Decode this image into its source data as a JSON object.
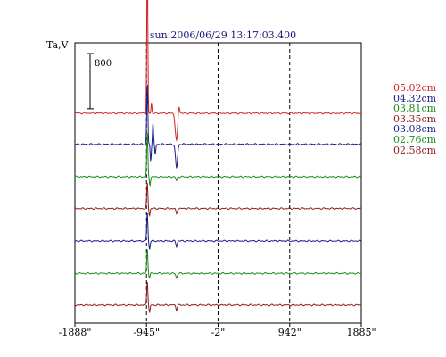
{
  "chart_data": {
    "type": "line",
    "title": "sun:2006/06/29 13:17:03.400",
    "ylabel": "Ta,V",
    "scale_bar_label": "800",
    "xlim": [
      -1888,
      1885
    ],
    "x_ticks": [
      {
        "value": -1888,
        "label": "-1888\""
      },
      {
        "value": -945,
        "label": "-945\""
      },
      {
        "value": -2,
        "label": "-2\""
      },
      {
        "value": 942,
        "label": "942\""
      },
      {
        "value": 1885,
        "label": "1885\""
      }
    ],
    "vertical_gridlines_at": [
      -945,
      -2,
      942
    ],
    "series": [
      {
        "name": "05.02cm",
        "color": "#cc2222",
        "baseline": 2880,
        "peaks": [
          {
            "x": -935,
            "amp": 2500,
            "width": 9
          },
          {
            "x": -880,
            "amp": 150,
            "width": 8
          },
          {
            "x": -550,
            "amp": -400,
            "width": 22
          },
          {
            "x": -520,
            "amp": 140,
            "width": 14
          }
        ]
      },
      {
        "name": "04.32cm",
        "color": "#1a1a8c",
        "baseline": 2430,
        "peaks": [
          {
            "x": -935,
            "amp": 900,
            "width": 10
          },
          {
            "x": -890,
            "amp": -250,
            "width": 9
          },
          {
            "x": -860,
            "amp": 320,
            "width": 9
          },
          {
            "x": -830,
            "amp": -150,
            "width": 9
          },
          {
            "x": -550,
            "amp": -350,
            "width": 18
          }
        ]
      },
      {
        "name": "03.81cm",
        "color": "#1a8a1a",
        "baseline": 1960,
        "peaks": [
          {
            "x": -935,
            "amp": 650,
            "width": 10
          },
          {
            "x": -900,
            "amp": -120,
            "width": 10
          },
          {
            "x": -550,
            "amp": -60,
            "width": 12
          }
        ]
      },
      {
        "name": "03.35cm",
        "color": "#8c1a1a",
        "baseline": 1500,
        "peaks": [
          {
            "x": -935,
            "amp": 380,
            "width": 10
          },
          {
            "x": -905,
            "amp": -100,
            "width": 10
          },
          {
            "x": -550,
            "amp": -80,
            "width": 12
          }
        ]
      },
      {
        "name": "03.08cm",
        "color": "#1a1a8c",
        "baseline": 1030,
        "peaks": [
          {
            "x": -935,
            "amp": 420,
            "width": 10
          },
          {
            "x": -905,
            "amp": -120,
            "width": 10
          },
          {
            "x": -550,
            "amp": -80,
            "width": 12
          }
        ]
      },
      {
        "name": "02.76cm",
        "color": "#1a8a1a",
        "baseline": 560,
        "peaks": [
          {
            "x": -935,
            "amp": 360,
            "width": 10
          },
          {
            "x": -905,
            "amp": -60,
            "width": 10
          },
          {
            "x": -550,
            "amp": -70,
            "width": 12
          }
        ]
      },
      {
        "name": "02.58cm",
        "color": "#8c1a1a",
        "baseline": 100,
        "peaks": [
          {
            "x": -935,
            "amp": 360,
            "width": 10
          },
          {
            "x": -905,
            "amp": -110,
            "width": 10
          },
          {
            "x": -550,
            "amp": -70,
            "width": 12
          }
        ]
      }
    ],
    "ylim": [
      -160,
      3900
    ],
    "grid": "vertical-dashed",
    "legend_placement": "right"
  }
}
